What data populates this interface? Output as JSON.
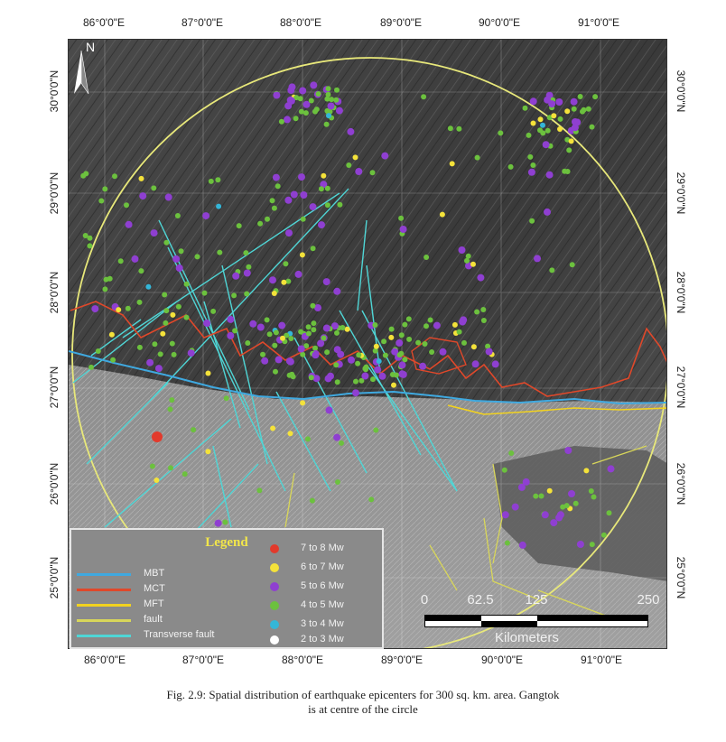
{
  "axes": {
    "top_ticks": [
      "86°0'0\"E",
      "87°0'0\"E",
      "88°0'0\"E",
      "89°0'0\"E",
      "90°0'0\"E",
      "91°0'0\"E"
    ],
    "bottom_ticks": [
      "86°0'0\"E",
      "87°0'0\"E",
      "88°0'0\"E",
      "89°0'0\"E",
      "90°0'0\"E",
      "91°0'0\"E"
    ],
    "left_ticks": [
      "30°0'0\"N",
      "29°0'0\"N",
      "28°0'0\"N",
      "27°0'0\"N",
      "26°0'0\"N",
      "25°0'0\"N"
    ],
    "right_ticks": [
      "30°0'0\"N",
      "29°0'0\"N",
      "28°0'0\"N",
      "27°0'0\"N",
      "26°0'0\"N",
      "25°0'0\"N"
    ]
  },
  "north_arrow": {
    "label": "N"
  },
  "legend": {
    "title": "Legend",
    "lines": [
      {
        "label": "MBT",
        "color": "#3fa9e0"
      },
      {
        "label": "MCT",
        "color": "#e0482a"
      },
      {
        "label": "MFT",
        "color": "#f2d21f"
      },
      {
        "label": "fault",
        "color": "#d8d65a"
      },
      {
        "label": "Transverse fault",
        "color": "#4fd6d6"
      }
    ],
    "magnitudes": [
      {
        "label": "7 to 8 Mw",
        "color": "#e23a2c"
      },
      {
        "label": "6 to 7  Mw",
        "color": "#f4e23a"
      },
      {
        "label": "5 to 6  Mw",
        "color": "#8f3fd1"
      },
      {
        "label": "4 to 5  Mw",
        "color": "#6cc13e"
      },
      {
        "label": "3 to 4  Mw",
        "color": "#34b6d8"
      },
      {
        "label": "2 to 3  Mw",
        "color": "#ffffff"
      }
    ]
  },
  "scale_bar": {
    "ticks": [
      "0",
      "62.5",
      "125",
      "250"
    ],
    "unit": "Kilometers"
  },
  "caption": {
    "line1": "Fig. 2.9: Spatial distribution of earthquake epicenters for 300 sq. km. area. Gangtok",
    "line2": "is at centre of the circle"
  }
}
